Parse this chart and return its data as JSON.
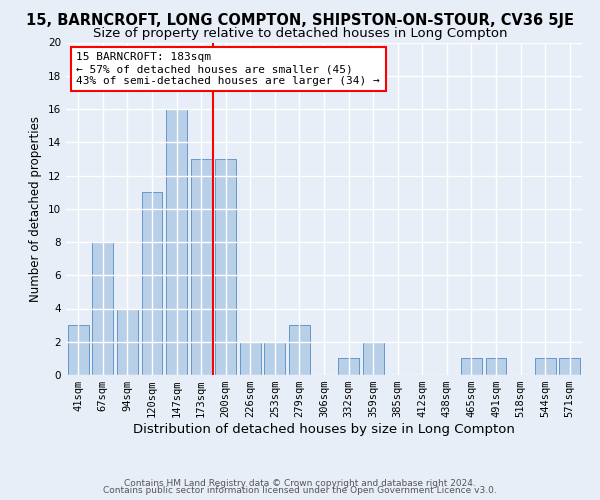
{
  "title": "15, BARNCROFT, LONG COMPTON, SHIPSTON-ON-STOUR, CV36 5JE",
  "subtitle": "Size of property relative to detached houses in Long Compton",
  "xlabel": "Distribution of detached houses by size in Long Compton",
  "ylabel": "Number of detached properties",
  "categories": [
    "41sqm",
    "67sqm",
    "94sqm",
    "120sqm",
    "147sqm",
    "173sqm",
    "200sqm",
    "226sqm",
    "253sqm",
    "279sqm",
    "306sqm",
    "332sqm",
    "359sqm",
    "385sqm",
    "412sqm",
    "438sqm",
    "465sqm",
    "491sqm",
    "518sqm",
    "544sqm",
    "571sqm"
  ],
  "values": [
    3,
    8,
    4,
    11,
    16,
    13,
    13,
    2,
    2,
    3,
    0,
    1,
    2,
    0,
    0,
    0,
    1,
    1,
    0,
    1,
    1
  ],
  "bar_color": "#b8cfe8",
  "bar_edge_color": "#6699cc",
  "vline_x": 5.5,
  "vline_color": "red",
  "annotation_line1": "15 BARNCROFT: 183sqm",
  "annotation_line2": "← 57% of detached houses are smaller (45)",
  "annotation_line3": "43% of semi-detached houses are larger (34) →",
  "annotation_box_color": "white",
  "annotation_box_edge": "red",
  "ylim": [
    0,
    20
  ],
  "yticks": [
    0,
    2,
    4,
    6,
    8,
    10,
    12,
    14,
    16,
    18,
    20
  ],
  "background_color": "#e8eef7",
  "grid_color": "white",
  "footer_line1": "Contains HM Land Registry data © Crown copyright and database right 2024.",
  "footer_line2": "Contains public sector information licensed under the Open Government Licence v3.0.",
  "title_fontsize": 10.5,
  "subtitle_fontsize": 9.5,
  "xlabel_fontsize": 9.5,
  "ylabel_fontsize": 8.5,
  "tick_fontsize": 7.5,
  "annotation_fontsize": 8,
  "footer_fontsize": 6.5
}
